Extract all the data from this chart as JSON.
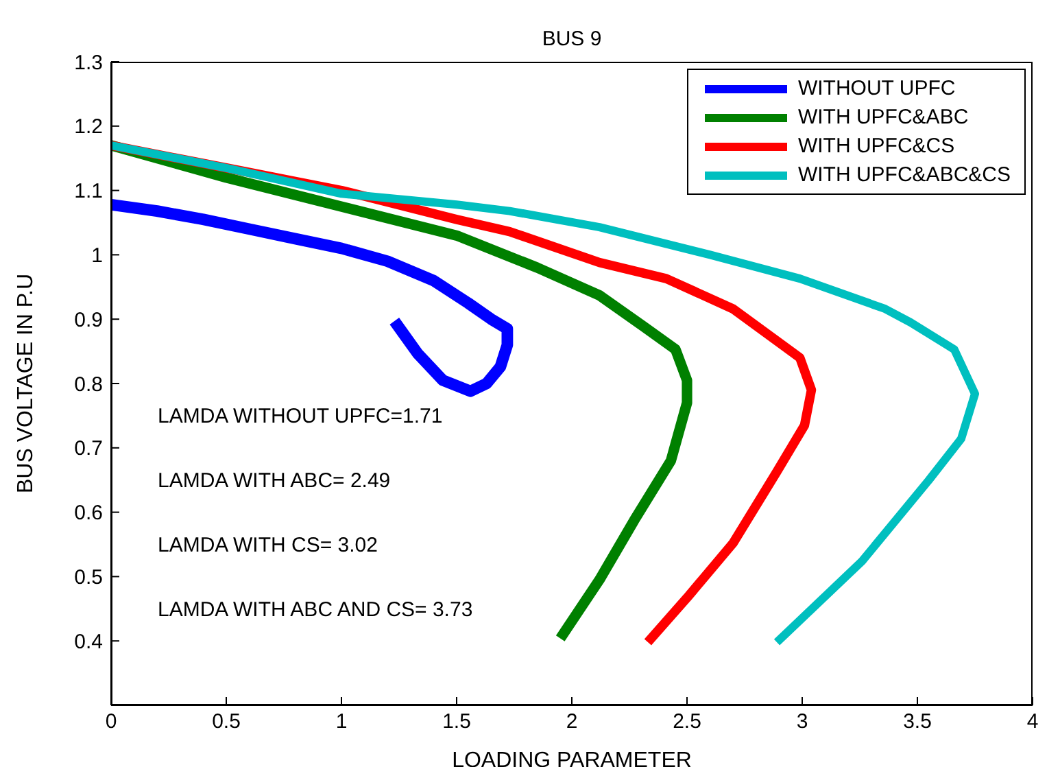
{
  "chart_data": {
    "type": "line",
    "title": "BUS 9",
    "xlabel": "LOADING PARAMETER",
    "ylabel": "BUS VOLTAGE IN P.U",
    "xlim": [
      0,
      4
    ],
    "xticks": [
      0,
      0.5,
      1,
      1.5,
      2,
      2.5,
      3,
      3.5,
      4
    ],
    "ylim": [
      0.3,
      1.3
    ],
    "yticks": [
      0.4,
      0.5,
      0.6,
      0.7,
      0.8,
      0.9,
      1,
      1.1,
      1.2,
      1.3
    ],
    "grid": false,
    "legend": "top right",
    "marker": "none",
    "line_style": "solid",
    "annotations": [
      "LAMDA WITHOUT UPFC=1.71",
      "LAMDA WITH ABC= 2.49",
      "LAMDA WITH CS= 3.02",
      "LAMDA WITH ABC AND CS= 3.73"
    ],
    "series": [
      {
        "name": "WITHOUT UPFC",
        "color": "#0000ff",
        "x": [
          0,
          0.2,
          0.4,
          0.6,
          0.8,
          1.0,
          1.2,
          1.4,
          1.55,
          1.65,
          1.72,
          1.72,
          1.69,
          1.63,
          1.56,
          1.44,
          1.33,
          1.23
        ],
        "values": [
          1.078,
          1.068,
          1.055,
          1.04,
          1.025,
          1.01,
          0.99,
          0.96,
          0.925,
          0.9,
          0.885,
          0.86,
          0.826,
          0.8,
          0.788,
          0.805,
          0.847,
          0.897
        ]
      },
      {
        "name": "WITH UPFC&ABC",
        "color": "#008000",
        "x": [
          0,
          0.5,
          1.0,
          1.5,
          1.85,
          2.12,
          2.31,
          2.45,
          2.5,
          2.5,
          2.43,
          2.27,
          2.12,
          1.95
        ],
        "values": [
          1.17,
          1.12,
          1.075,
          1.03,
          0.98,
          0.937,
          0.889,
          0.853,
          0.805,
          0.77,
          0.68,
          0.587,
          0.495,
          0.404
        ]
      },
      {
        "name": "WITH UPFC&CS",
        "color": "#ff0000",
        "x": [
          0,
          0.5,
          1.0,
          1.5,
          1.73,
          2.12,
          2.41,
          2.7,
          2.99,
          3.04,
          3.01,
          2.89,
          2.7,
          2.5,
          2.33
        ],
        "values": [
          1.17,
          1.135,
          1.1,
          1.055,
          1.036,
          0.988,
          0.963,
          0.916,
          0.84,
          0.79,
          0.735,
          0.663,
          0.552,
          0.467,
          0.398
        ]
      },
      {
        "name": "WITH UPFC&ABC&CS",
        "color": "#00bfbf",
        "x": [
          0,
          0.5,
          1.0,
          1.5,
          1.73,
          2.12,
          2.6,
          2.99,
          3.36,
          3.47,
          3.66,
          3.75,
          3.69,
          3.55,
          3.26,
          2.89
        ],
        "values": [
          1.17,
          1.135,
          1.095,
          1.078,
          1.068,
          1.043,
          1.0,
          0.963,
          0.916,
          0.895,
          0.853,
          0.784,
          0.714,
          0.65,
          0.524,
          0.398
        ]
      }
    ]
  }
}
